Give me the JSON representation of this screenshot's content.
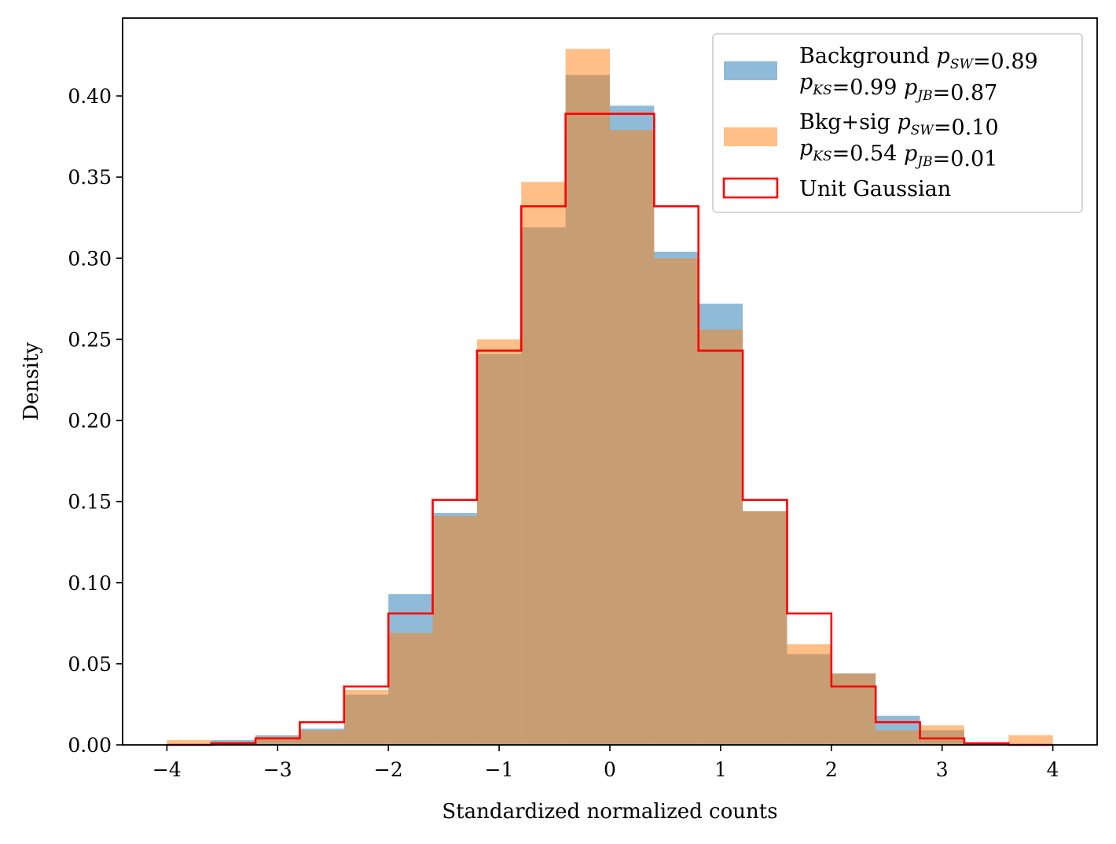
{
  "chart_data": {
    "type": "bar",
    "title": "",
    "xlabel": "Standardized normalized counts",
    "ylabel": "Density",
    "xlim": [
      -4.4,
      4.4
    ],
    "ylim": [
      0,
      0.448
    ],
    "bin_edges": [
      -4.0,
      -3.6,
      -3.2,
      -2.8,
      -2.4,
      -2.0,
      -1.6,
      -1.2,
      -0.8,
      -0.4,
      0.0,
      0.4,
      0.8,
      1.2,
      1.6,
      2.0,
      2.4,
      2.8,
      3.2,
      3.6,
      4.0
    ],
    "xticks": [
      -4,
      -3,
      -2,
      -1,
      0,
      1,
      2,
      3,
      4
    ],
    "xtick_labels": [
      "−4",
      "−3",
      "−2",
      "−1",
      "0",
      "1",
      "2",
      "3",
      "4"
    ],
    "yticks": [
      0.0,
      0.05,
      0.1,
      0.15,
      0.2,
      0.25,
      0.3,
      0.35,
      0.4
    ],
    "ytick_labels": [
      "0.00",
      "0.05",
      "0.10",
      "0.15",
      "0.20",
      "0.25",
      "0.30",
      "0.35",
      "0.40"
    ],
    "series": [
      {
        "name": "Background",
        "style": "filled",
        "color": "#1f77b4",
        "opacity": 0.5,
        "values": [
          0.0,
          0.003,
          0.006,
          0.01,
          0.031,
          0.093,
          0.143,
          0.241,
          0.319,
          0.413,
          0.394,
          0.304,
          0.272,
          0.144,
          0.056,
          0.044,
          0.018,
          0.009,
          0.0,
          0.0
        ]
      },
      {
        "name": "Bkg+sig",
        "style": "filled",
        "color": "#ff7f0e",
        "opacity": 0.5,
        "values": [
          0.003,
          0.002,
          0.005,
          0.009,
          0.034,
          0.069,
          0.141,
          0.25,
          0.347,
          0.429,
          0.379,
          0.3,
          0.256,
          0.144,
          0.062,
          0.044,
          0.009,
          0.012,
          0.0,
          0.006
        ]
      },
      {
        "name": "Unit Gaussian",
        "style": "step",
        "color": "#ff0000",
        "values": [
          0.0,
          0.001,
          0.004,
          0.014,
          0.036,
          0.081,
          0.151,
          0.243,
          0.332,
          0.389,
          0.389,
          0.332,
          0.243,
          0.151,
          0.081,
          0.036,
          0.014,
          0.004,
          0.001,
          0.0
        ]
      }
    ],
    "legend": {
      "position": "upper right",
      "entries": [
        {
          "series": "Background",
          "line1": [
            {
              "t": "Background ",
              "k": "text"
            },
            {
              "t": "p",
              "k": "math"
            },
            {
              "t": "SW",
              "k": "sub"
            },
            {
              "t": "=0.89",
              "k": "text"
            }
          ],
          "line2": [
            {
              "t": "p",
              "k": "math"
            },
            {
              "t": "KS",
              "k": "sub"
            },
            {
              "t": "=0.99 ",
              "k": "text"
            },
            {
              "t": "p",
              "k": "math"
            },
            {
              "t": "JB",
              "k": "sub"
            },
            {
              "t": "=0.87",
              "k": "text"
            }
          ]
        },
        {
          "series": "Bkg+sig",
          "line1": [
            {
              "t": "Bkg+sig ",
              "k": "text"
            },
            {
              "t": "p",
              "k": "math"
            },
            {
              "t": "SW",
              "k": "sub"
            },
            {
              "t": "=0.10",
              "k": "text"
            }
          ],
          "line2": [
            {
              "t": "p",
              "k": "math"
            },
            {
              "t": "KS",
              "k": "sub"
            },
            {
              "t": "=0.54 ",
              "k": "text"
            },
            {
              "t": "p",
              "k": "math"
            },
            {
              "t": "JB",
              "k": "sub"
            },
            {
              "t": "=0.01",
              "k": "text"
            }
          ]
        },
        {
          "series": "Unit Gaussian",
          "line1": [
            {
              "t": "Unit Gaussian",
              "k": "text"
            }
          ]
        }
      ]
    }
  }
}
